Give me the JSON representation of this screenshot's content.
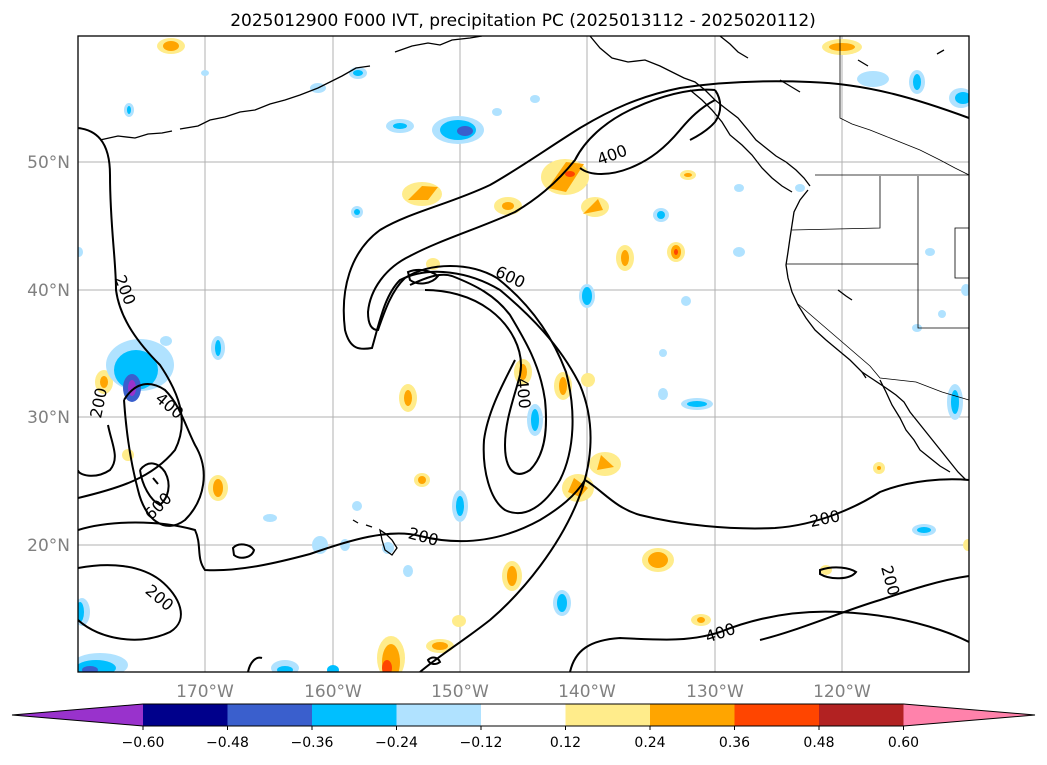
{
  "title": "2025012900 F000 IVT, precipitation PC (2025013112 - 2025020112)",
  "lat_labels": [
    "50°N",
    "40°N",
    "30°N",
    "20°N"
  ],
  "lon_labels": [
    "170°W",
    "160°W",
    "150°W",
    "140°W",
    "130°W",
    "120°W"
  ],
  "colorbar": {
    "tick_labels": [
      "−0.60",
      "−0.48",
      "−0.36",
      "−0.24",
      "−0.12",
      "0.12",
      "0.24",
      "0.36",
      "0.48",
      "0.60"
    ],
    "colors": [
      "#9932cc",
      "#00008b",
      "#3a5fcd",
      "#00bfff",
      "#b0e2ff",
      "#ffffff",
      "#ffec8b",
      "#ffa500",
      "#ff4500",
      "#b22222",
      "#ff82ab"
    ]
  },
  "contour_labels": [
    "200",
    "200",
    "400",
    "600",
    "400",
    "600",
    "400",
    "200",
    "200",
    "200",
    "200",
    "400"
  ],
  "map": {
    "lon_range": [
      -180,
      -110
    ],
    "lat_range": [
      10,
      60
    ],
    "ivt_contour_levels": [
      200,
      400,
      600
    ]
  }
}
